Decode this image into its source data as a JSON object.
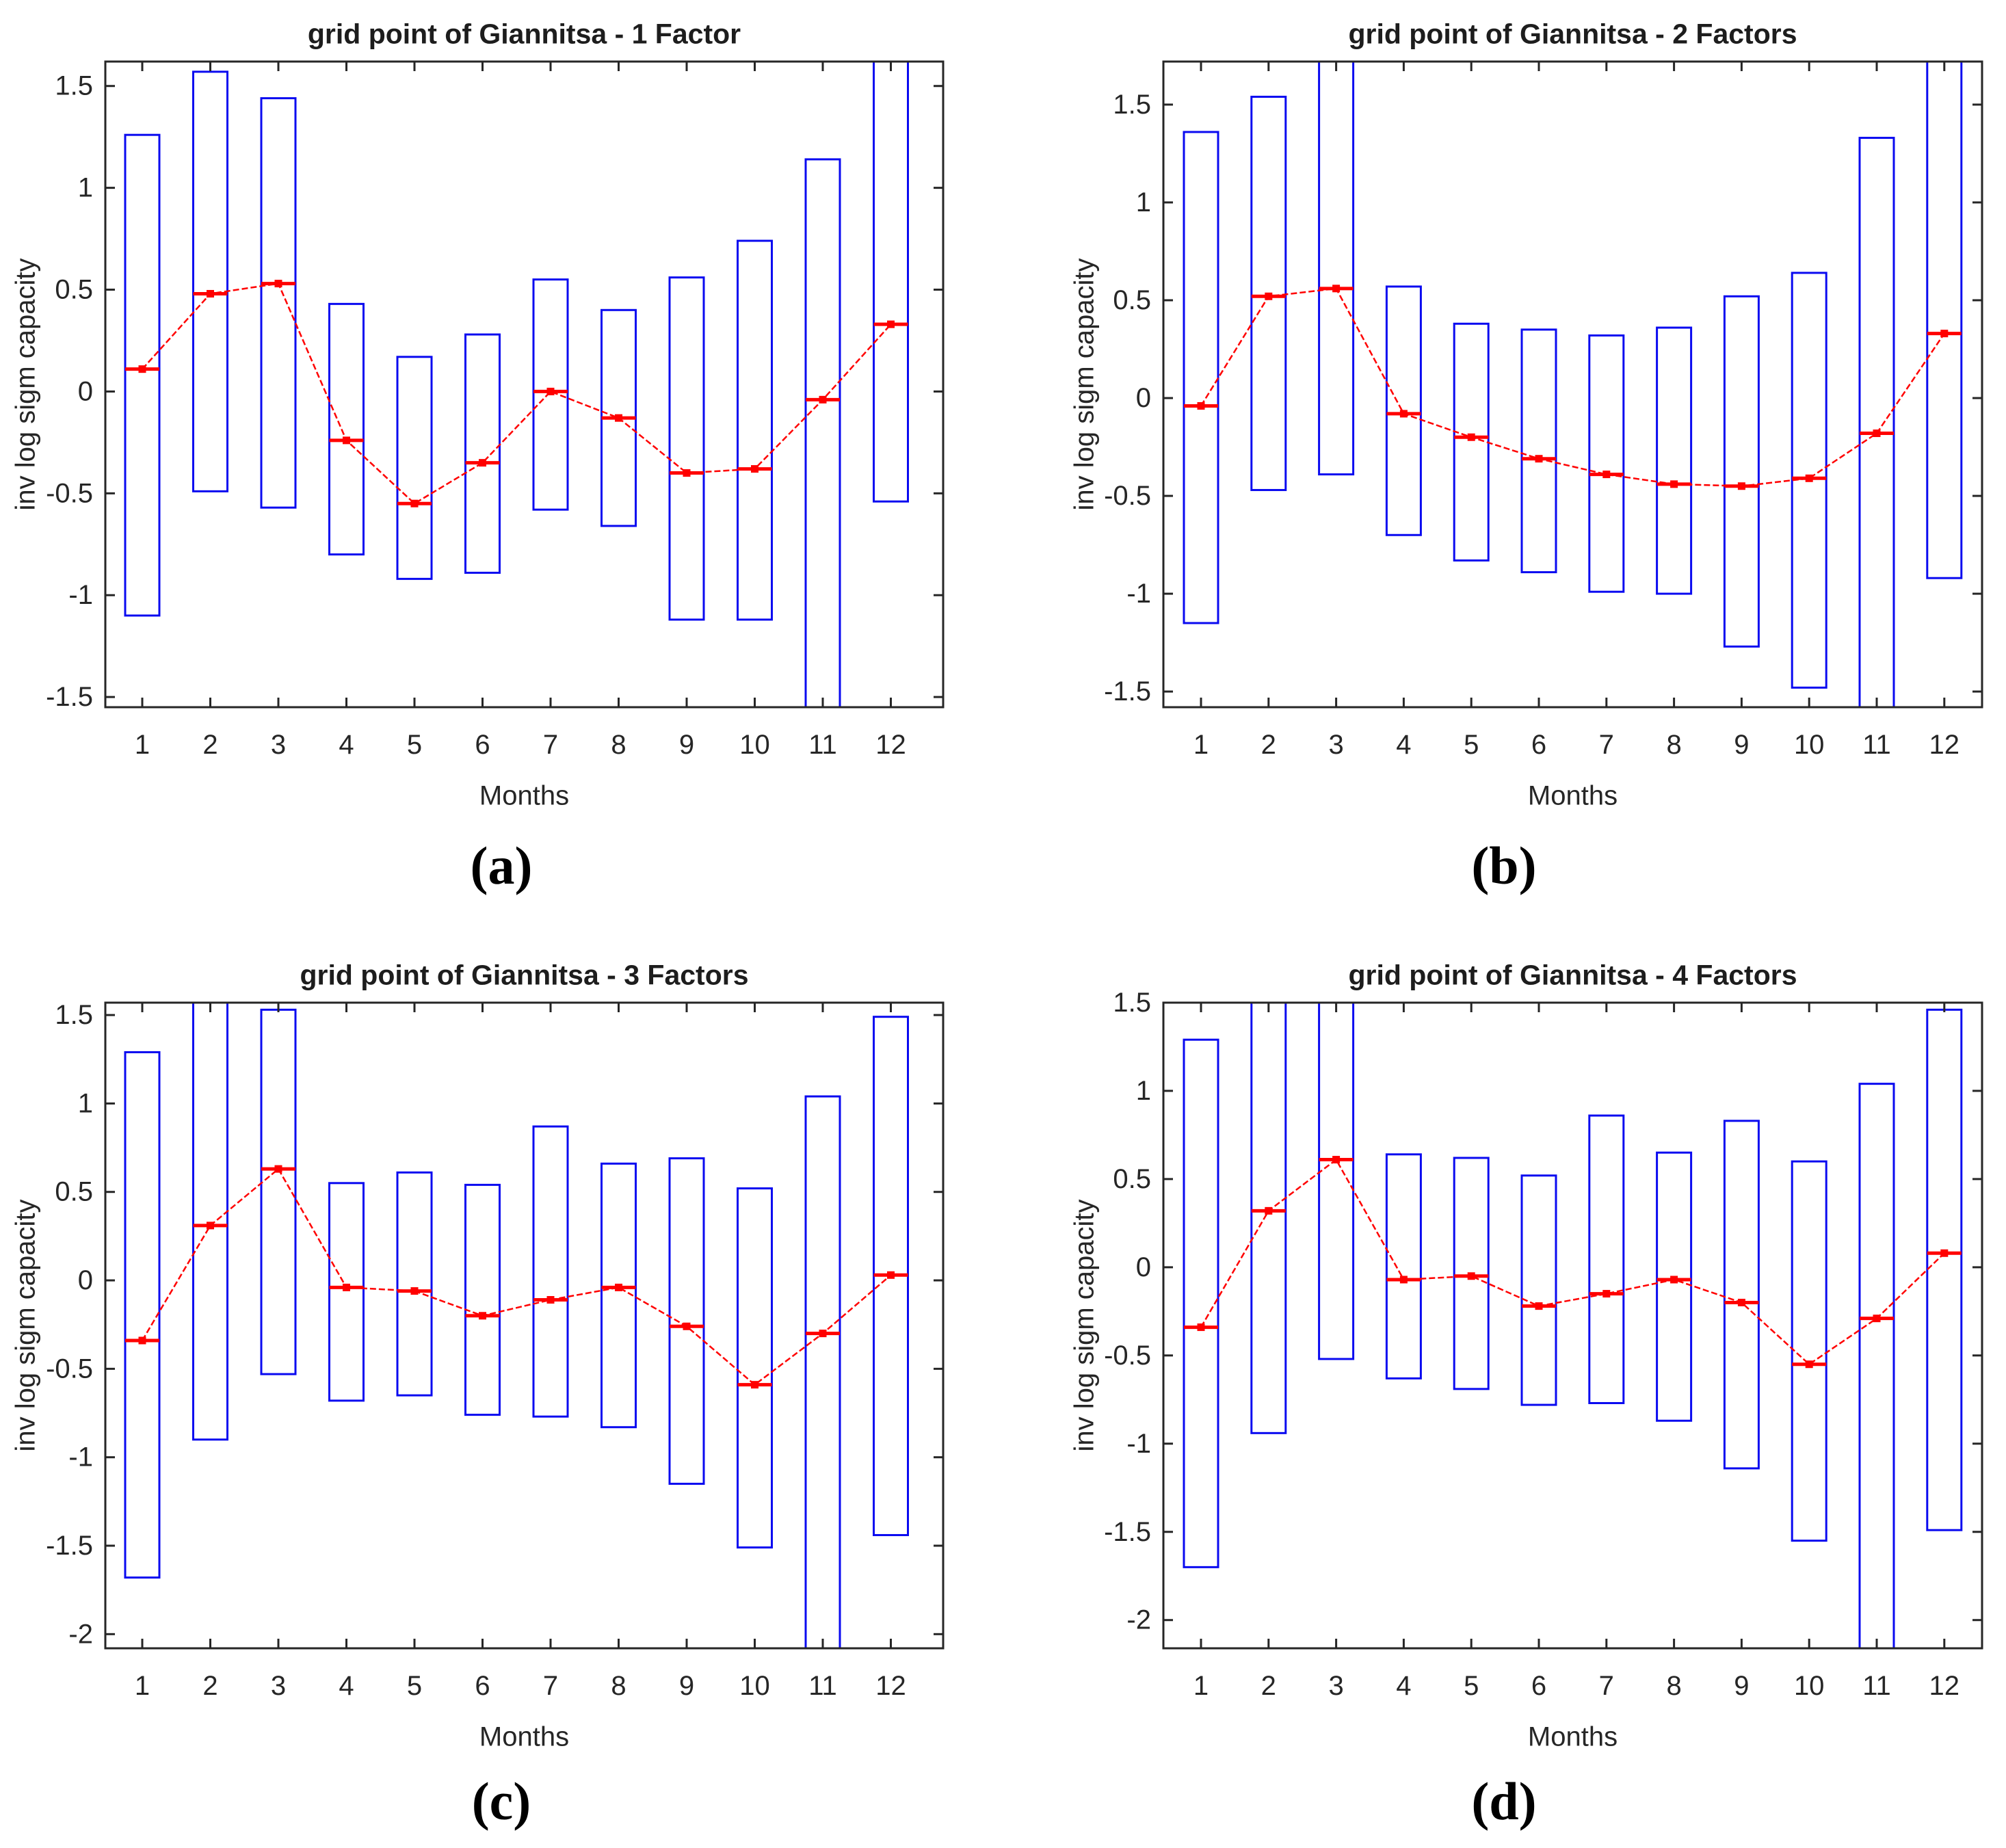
{
  "figure": {
    "background": "#ffffff",
    "captions": [
      "(a)",
      "(b)",
      "(c)",
      "(d)"
    ]
  },
  "colors": {
    "box_stroke": "#0a0af0",
    "mean_line": "#ff0000",
    "axis": "#262626",
    "tick_text": "#262626",
    "title_text": "#1d1d1d"
  },
  "chart_data": [
    {
      "type": "box",
      "title": "grid point of Giannitsa - 1 Factor",
      "xlabel": "Months",
      "ylabel": "inv log sigm capacity",
      "caption": "(a)",
      "categories": [
        1,
        2,
        3,
        4,
        5,
        6,
        7,
        8,
        9,
        10,
        11,
        12
      ],
      "box_low": [
        -1.1,
        -0.49,
        -0.57,
        -0.8,
        -0.92,
        -0.89,
        -0.58,
        -0.66,
        -1.12,
        -1.12,
        -1.6,
        -0.54
      ],
      "box_high": [
        1.26,
        1.57,
        1.44,
        0.43,
        0.17,
        0.28,
        0.55,
        0.4,
        0.56,
        0.74,
        1.14,
        1.72
      ],
      "mean": [
        0.11,
        0.48,
        0.53,
        -0.24,
        -0.55,
        -0.35,
        0.0,
        -0.13,
        -0.4,
        -0.38,
        -0.04,
        0.33
      ],
      "ylim": [
        -1.55,
        1.62
      ],
      "yticks": [
        -1.5,
        -1,
        -0.5,
        0,
        0.5,
        1,
        1.5
      ],
      "grid": false,
      "legend": null
    },
    {
      "type": "box",
      "title": "grid point of Giannitsa - 2 Factors",
      "xlabel": "Months",
      "ylabel": "inv log sigm capacity",
      "caption": "(b)",
      "categories": [
        1,
        2,
        3,
        4,
        5,
        6,
        7,
        8,
        9,
        10,
        11,
        12
      ],
      "box_low": [
        -1.15,
        -0.47,
        -0.39,
        -0.7,
        -0.83,
        -0.89,
        -0.99,
        -1.0,
        -1.27,
        -1.48,
        -1.7,
        -0.92
      ],
      "box_high": [
        1.36,
        1.54,
        1.82,
        0.57,
        0.38,
        0.35,
        0.32,
        0.36,
        0.52,
        0.64,
        1.33,
        1.82
      ],
      "mean": [
        -0.04,
        0.52,
        0.56,
        -0.08,
        -0.2,
        -0.31,
        -0.39,
        -0.44,
        -0.45,
        -0.41,
        -0.18,
        0.33
      ],
      "ylim": [
        -1.58,
        1.72
      ],
      "yticks": [
        -1.5,
        -1,
        -0.5,
        0,
        0.5,
        1,
        1.5
      ],
      "grid": false,
      "legend": null
    },
    {
      "type": "box",
      "title": "grid point of Giannitsa - 3 Factors",
      "xlabel": "Months",
      "ylabel": "inv log sigm capacity",
      "caption": "(c)",
      "categories": [
        1,
        2,
        3,
        4,
        5,
        6,
        7,
        8,
        9,
        10,
        11,
        12
      ],
      "box_low": [
        -1.68,
        -0.9,
        -0.53,
        -0.68,
        -0.65,
        -0.76,
        -0.77,
        -0.83,
        -1.15,
        -1.51,
        -2.2,
        -1.44
      ],
      "box_high": [
        1.29,
        1.68,
        1.53,
        0.55,
        0.61,
        0.54,
        0.87,
        0.66,
        0.69,
        0.52,
        1.04,
        1.49
      ],
      "mean": [
        -0.34,
        0.31,
        0.63,
        -0.04,
        -0.06,
        -0.2,
        -0.11,
        -0.04,
        -0.26,
        -0.59,
        -0.3,
        0.03
      ],
      "ylim": [
        -2.08,
        1.57
      ],
      "yticks": [
        -2,
        -1.5,
        -1,
        -0.5,
        0,
        0.5,
        1,
        1.5
      ],
      "grid": false,
      "legend": null
    },
    {
      "type": "box",
      "title": "grid point of Giannitsa - 4 Factors",
      "xlabel": "Months",
      "ylabel": "inv log sigm capacity",
      "caption": "(d)",
      "categories": [
        1,
        2,
        3,
        4,
        5,
        6,
        7,
        8,
        9,
        10,
        11,
        12
      ],
      "box_low": [
        -1.7,
        -0.94,
        -0.52,
        -0.63,
        -0.69,
        -0.78,
        -0.77,
        -0.87,
        -1.14,
        -1.55,
        -2.3,
        -1.49
      ],
      "box_high": [
        1.29,
        1.62,
        1.62,
        0.64,
        0.62,
        0.52,
        0.86,
        0.65,
        0.83,
        0.6,
        1.04,
        1.46
      ],
      "mean": [
        -0.34,
        0.32,
        0.61,
        -0.07,
        -0.05,
        -0.22,
        -0.15,
        -0.07,
        -0.2,
        -0.55,
        -0.29,
        0.08
      ],
      "ylim": [
        -2.16,
        1.5
      ],
      "yticks": [
        -2,
        -1.5,
        -1,
        -0.5,
        0,
        0.5,
        1,
        1.5
      ],
      "grid": false,
      "legend": null
    }
  ]
}
